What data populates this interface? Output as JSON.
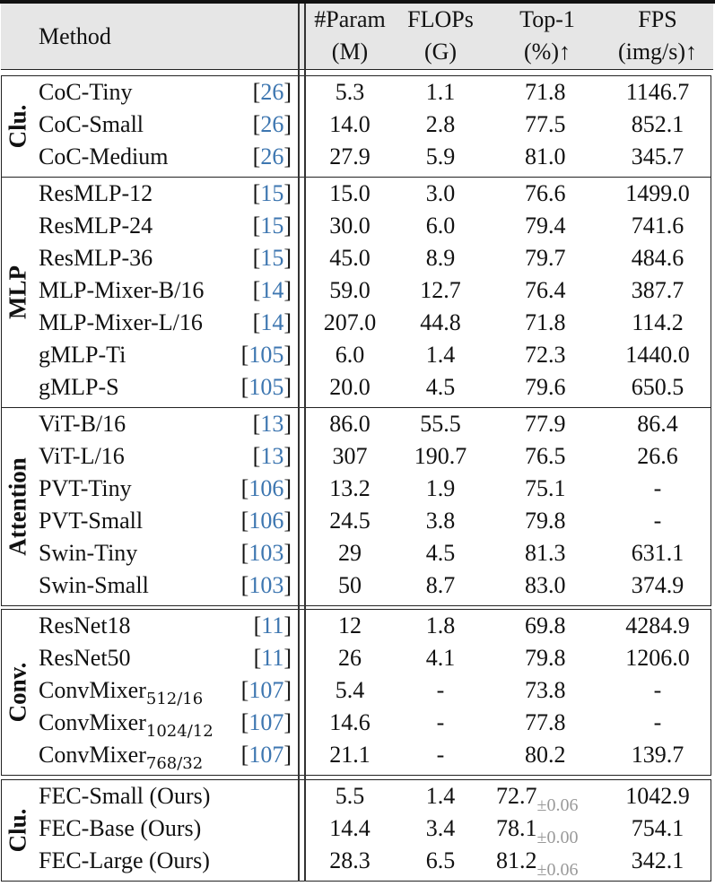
{
  "header": {
    "method": "Method",
    "param": [
      "#Param",
      "(M)"
    ],
    "flops": [
      "FLOPs",
      "(G)"
    ],
    "top1": [
      "Top-1",
      "(%)↑"
    ],
    "fps": [
      "FPS",
      "(img/s)↑"
    ]
  },
  "groups": [
    {
      "label": "Clu.",
      "rows": [
        {
          "method": "CoC-Tiny",
          "ref": "26",
          "param": "5.3",
          "flops": "1.1",
          "top1": "71.8",
          "fps": "1146.7"
        },
        {
          "method": "CoC-Small",
          "ref": "26",
          "param": "14.0",
          "flops": "2.8",
          "top1": "77.5",
          "fps": "852.1"
        },
        {
          "method": "CoC-Medium",
          "ref": "26",
          "param": "27.9",
          "flops": "5.9",
          "top1": "81.0",
          "fps": "345.7"
        }
      ]
    },
    {
      "label": "MLP",
      "rows": [
        {
          "method": "ResMLP-12",
          "ref": "15",
          "param": "15.0",
          "flops": "3.0",
          "top1": "76.6",
          "fps": "1499.0"
        },
        {
          "method": "ResMLP-24",
          "ref": "15",
          "param": "30.0",
          "flops": "6.0",
          "top1": "79.4",
          "fps": "741.6"
        },
        {
          "method": "ResMLP-36",
          "ref": "15",
          "param": "45.0",
          "flops": "8.9",
          "top1": "79.7",
          "fps": "484.6"
        },
        {
          "method": "MLP-Mixer-B/16",
          "ref": "14",
          "param": "59.0",
          "flops": "12.7",
          "top1": "76.4",
          "fps": "387.7"
        },
        {
          "method": "MLP-Mixer-L/16",
          "ref": "14",
          "param": "207.0",
          "flops": "44.8",
          "top1": "71.8",
          "fps": "114.2"
        },
        {
          "method": "gMLP-Ti",
          "ref": "105",
          "param": "6.0",
          "flops": "1.4",
          "top1": "72.3",
          "fps": "1440.0"
        },
        {
          "method": "gMLP-S",
          "ref": "105",
          "param": "20.0",
          "flops": "4.5",
          "top1": "79.6",
          "fps": "650.5"
        }
      ]
    },
    {
      "label": "Attention",
      "rows": [
        {
          "method": "ViT-B/16",
          "ref": "13",
          "param": "86.0",
          "flops": "55.5",
          "top1": "77.9",
          "fps": "86.4"
        },
        {
          "method": "ViT-L/16",
          "ref": "13",
          "param": "307",
          "flops": "190.7",
          "top1": "76.5",
          "fps": "26.6"
        },
        {
          "method": "PVT-Tiny",
          "ref": "106",
          "param": "13.2",
          "flops": "1.9",
          "top1": "75.1",
          "fps": "-"
        },
        {
          "method": "PVT-Small",
          "ref": "106",
          "param": "24.5",
          "flops": "3.8",
          "top1": "79.8",
          "fps": "-"
        },
        {
          "method": "Swin-Tiny",
          "ref": "103",
          "param": "29",
          "flops": "4.5",
          "top1": "81.3",
          "fps": "631.1"
        },
        {
          "method": "Swin-Small",
          "ref": "103",
          "param": "50",
          "flops": "8.7",
          "top1": "83.0",
          "fps": "374.9"
        }
      ]
    },
    {
      "label": "Conv.",
      "rows": [
        {
          "method": "ResNet18",
          "ref": "11",
          "param": "12",
          "flops": "1.8",
          "top1": "69.8",
          "fps": "4284.9"
        },
        {
          "method": "ResNet50",
          "ref": "11",
          "param": "26",
          "flops": "4.1",
          "top1": "79.8",
          "fps": "1206.0"
        },
        {
          "method": "ConvMixer",
          "sub": "512/16",
          "ref": "107",
          "param": "5.4",
          "flops": "-",
          "top1": "73.8",
          "fps": "-"
        },
        {
          "method": "ConvMixer",
          "sub": "1024/12",
          "ref": "107",
          "param": "14.6",
          "flops": "-",
          "top1": "77.8",
          "fps": "-"
        },
        {
          "method": "ConvMixer",
          "sub": "768/32",
          "ref": "107",
          "param": "21.1",
          "flops": "-",
          "top1": "80.2",
          "fps": "139.7"
        }
      ]
    },
    {
      "label": "Clu.",
      "rows": [
        {
          "method": "FEC-Small (Ours)",
          "param": "5.5",
          "flops": "1.4",
          "top1": "72.7",
          "pm": "±0.06",
          "fps": "1042.9"
        },
        {
          "method": "FEC-Base   (Ours)",
          "param": "14.4",
          "flops": "3.4",
          "top1": "78.1",
          "pm": "±0.00",
          "fps": "754.1"
        },
        {
          "method": "FEC-Large (Ours)",
          "param": "28.3",
          "flops": "6.5",
          "top1": "81.2",
          "pm": "±0.06",
          "fps": "342.1"
        }
      ]
    }
  ]
}
